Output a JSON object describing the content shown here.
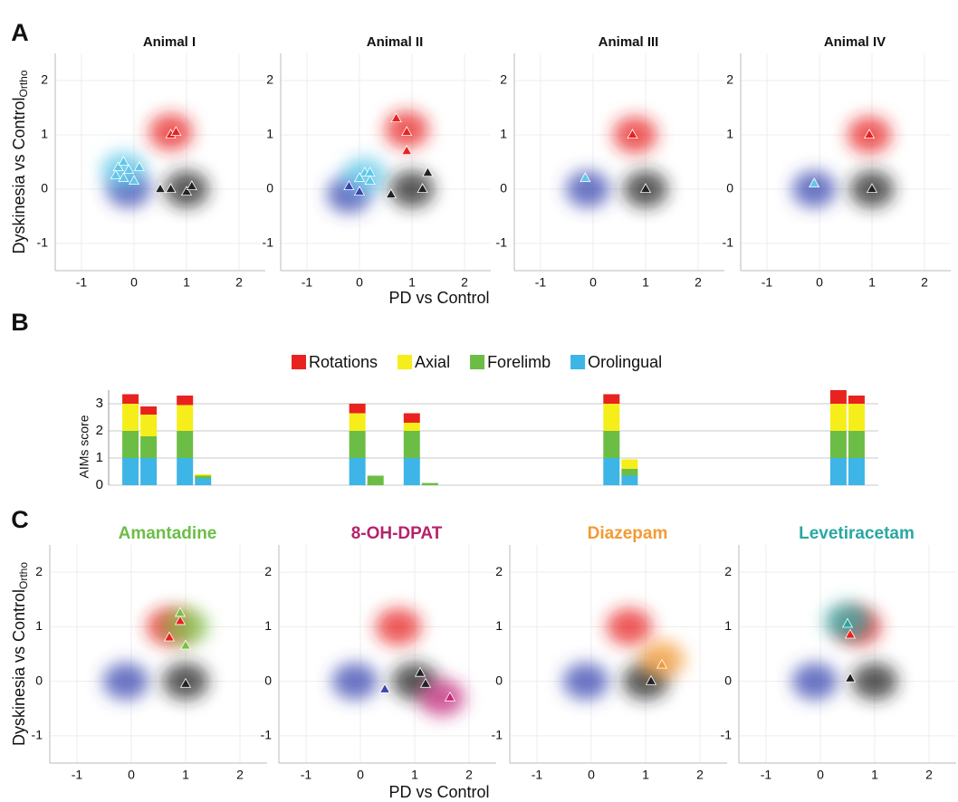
{
  "chart_data": [
    {
      "type": "scatter",
      "panel_label": "A",
      "title": "Animal I",
      "y_label": "Dyskinesia vs Control",
      "y_label_sub": "Ortho",
      "xlim": [
        -1.5,
        2.5
      ],
      "ylim": [
        -1.5,
        2.5
      ],
      "xticks": [
        -1,
        0,
        1,
        2
      ],
      "yticks": [
        -1,
        0,
        1,
        2
      ],
      "grid": true,
      "series": [
        {
          "marker": "cloud",
          "color": "#3a45b0",
          "x": [
            -0.1
          ],
          "values": [
            0.0
          ]
        },
        {
          "marker": "cloud",
          "color": "#5ec8e8",
          "x": [
            -0.2
          ],
          "values": [
            0.35
          ]
        },
        {
          "marker": "cloud",
          "color": "#e8231f",
          "x": [
            0.7
          ],
          "values": [
            1.05
          ]
        },
        {
          "marker": "cloud",
          "color": "#222222",
          "x": [
            1.0
          ],
          "values": [
            0.0
          ]
        },
        {
          "marker": "triangle",
          "color": "#5ec8e8",
          "x": [
            -0.3,
            -0.2,
            -0.1,
            0.1,
            -0.2,
            -0.35,
            0.0
          ],
          "values": [
            0.4,
            0.5,
            0.35,
            0.4,
            0.2,
            0.25,
            0.15
          ]
        },
        {
          "marker": "triangle",
          "color": "#e8231f",
          "x": [
            0.7,
            0.8
          ],
          "values": [
            1.0,
            1.05
          ]
        },
        {
          "marker": "triangle",
          "color": "#222222",
          "x": [
            0.5,
            0.7,
            1.0,
            1.1
          ],
          "values": [
            0.0,
            0.0,
            -0.05,
            0.05
          ]
        }
      ]
    },
    {
      "type": "scatter",
      "title": "Animal II",
      "x_label": "PD vs Control",
      "xlim": [
        -1.5,
        2.5
      ],
      "ylim": [
        -1.5,
        2.5
      ],
      "xticks": [
        -1,
        0,
        1,
        2
      ],
      "yticks": [
        -1,
        0,
        1,
        2
      ],
      "grid": true,
      "series": [
        {
          "marker": "cloud",
          "color": "#3a45b0",
          "x": [
            -0.2
          ],
          "values": [
            -0.1
          ]
        },
        {
          "marker": "cloud",
          "color": "#5ec8e8",
          "x": [
            0.1
          ],
          "values": [
            0.25
          ]
        },
        {
          "marker": "cloud",
          "color": "#e8231f",
          "x": [
            0.9
          ],
          "values": [
            1.1
          ]
        },
        {
          "marker": "cloud",
          "color": "#222222",
          "x": [
            1.0
          ],
          "values": [
            0.0
          ]
        },
        {
          "marker": "triangle",
          "color": "#5ec8e8",
          "x": [
            0.1,
            0.2,
            0.0,
            0.2
          ],
          "values": [
            0.3,
            0.3,
            0.2,
            0.15
          ]
        },
        {
          "marker": "triangle",
          "color": "#3a45b0",
          "x": [
            -0.2,
            0.0
          ],
          "values": [
            0.05,
            -0.05
          ]
        },
        {
          "marker": "triangle",
          "color": "#e8231f",
          "x": [
            0.7,
            0.9,
            0.9
          ],
          "values": [
            1.3,
            1.05,
            0.7
          ]
        },
        {
          "marker": "triangle",
          "color": "#222222",
          "x": [
            0.6,
            1.2,
            1.3
          ],
          "values": [
            -0.1,
            0.0,
            0.3
          ]
        }
      ]
    },
    {
      "type": "scatter",
      "title": "Animal III",
      "xlim": [
        -1.5,
        2.5
      ],
      "ylim": [
        -1.5,
        2.5
      ],
      "xticks": [
        -1,
        0,
        1,
        2
      ],
      "yticks": [
        -1,
        0,
        1,
        2
      ],
      "grid": true,
      "series": [
        {
          "marker": "cloud",
          "color": "#3a45b0",
          "x": [
            -0.1
          ],
          "values": [
            0.0
          ]
        },
        {
          "marker": "cloud",
          "color": "#e8231f",
          "x": [
            0.8
          ],
          "values": [
            1.0
          ]
        },
        {
          "marker": "cloud",
          "color": "#222222",
          "x": [
            1.0
          ],
          "values": [
            0.0
          ]
        },
        {
          "marker": "triangle",
          "color": "#5ec8e8",
          "x": [
            -0.15
          ],
          "values": [
            0.2
          ]
        },
        {
          "marker": "triangle",
          "color": "#e8231f",
          "x": [
            0.75
          ],
          "values": [
            1.0
          ]
        },
        {
          "marker": "triangle",
          "color": "#222222",
          "x": [
            1.0
          ],
          "values": [
            0.0
          ]
        }
      ]
    },
    {
      "type": "scatter",
      "title": "Animal IV",
      "xlim": [
        -1.5,
        2.5
      ],
      "ylim": [
        -1.5,
        2.5
      ],
      "xticks": [
        -1,
        0,
        1,
        2
      ],
      "yticks": [
        -1,
        0,
        1,
        2
      ],
      "grid": true,
      "series": [
        {
          "marker": "cloud",
          "color": "#3a45b0",
          "x": [
            -0.1
          ],
          "values": [
            0.0
          ]
        },
        {
          "marker": "cloud",
          "color": "#e8231f",
          "x": [
            0.95
          ],
          "values": [
            1.0
          ]
        },
        {
          "marker": "cloud",
          "color": "#222222",
          "x": [
            1.0
          ],
          "values": [
            0.0
          ]
        },
        {
          "marker": "triangle",
          "color": "#5ec8e8",
          "x": [
            -0.1
          ],
          "values": [
            0.1
          ]
        },
        {
          "marker": "triangle",
          "color": "#e8231f",
          "x": [
            0.95
          ],
          "values": [
            1.0
          ]
        },
        {
          "marker": "triangle",
          "color": "#222222",
          "x": [
            1.0
          ],
          "values": [
            0.0
          ]
        }
      ]
    },
    {
      "type": "stacked_bar",
      "panel_label": "B",
      "y_label": "AIMs score",
      "x": [
        0,
        1,
        3,
        4,
        12.5,
        13.5,
        15.5,
        16.5,
        26.5,
        27.5,
        39,
        40
      ],
      "xlim": [
        -1.2,
        41.2
      ],
      "ylim": [
        0,
        3.5
      ],
      "yticks": [
        0,
        1,
        2,
        3
      ],
      "grid": true,
      "series": [
        {
          "name": "Orolingual",
          "color": "#3db5e6",
          "values": [
            1,
            1,
            1,
            0.25,
            1,
            0,
            1,
            0,
            1,
            0.35,
            1,
            1
          ]
        },
        {
          "name": "Forelimb",
          "color": "#6cbd45",
          "values": [
            1,
            0.8,
            1,
            0.1,
            1,
            0.35,
            1,
            0.08,
            1,
            0.25,
            1,
            1
          ]
        },
        {
          "name": "Axial",
          "color": "#f5ee1b",
          "values": [
            1,
            0.8,
            0.95,
            0.05,
            0.65,
            0,
            0.3,
            0,
            1,
            0.35,
            1,
            1
          ]
        },
        {
          "name": "Rotations",
          "color": "#e8231f",
          "values": [
            0.35,
            0.3,
            0.35,
            0,
            0.35,
            0,
            0.35,
            0,
            0.35,
            0,
            0.5,
            0.3
          ]
        }
      ]
    },
    {
      "type": "scatter",
      "panel_label": "C",
      "title": "Amantadine",
      "title_color": "#6cbd45",
      "y_label": "Dyskinesia vs Control",
      "y_label_sub": "Ortho",
      "xlim": [
        -1.5,
        2.5
      ],
      "ylim": [
        -1.5,
        2.5
      ],
      "xticks": [
        -1,
        0,
        1,
        2
      ],
      "yticks": [
        -1,
        0,
        1,
        2
      ],
      "grid": true,
      "series": [
        {
          "marker": "cloud",
          "color": "#3a45b0",
          "x": [
            -0.1
          ],
          "values": [
            0.0
          ]
        },
        {
          "marker": "cloud",
          "color": "#e8231f",
          "x": [
            0.7
          ],
          "values": [
            1.0
          ]
        },
        {
          "marker": "cloud",
          "color": "#222222",
          "x": [
            1.0
          ],
          "values": [
            0.0
          ]
        },
        {
          "marker": "cloud",
          "color": "#7bc043",
          "x": [
            1.0
          ],
          "values": [
            1.0
          ]
        },
        {
          "marker": "triangle",
          "color": "#e8231f",
          "x": [
            0.9,
            0.7
          ],
          "values": [
            1.1,
            0.8
          ]
        },
        {
          "marker": "triangle",
          "color": "#7bc043",
          "x": [
            0.9,
            1.0
          ],
          "values": [
            1.25,
            0.65
          ]
        },
        {
          "marker": "triangle",
          "color": "#222222",
          "x": [
            1.0
          ],
          "values": [
            -0.05
          ]
        }
      ]
    },
    {
      "type": "scatter",
      "title": "8-OH-DPAT",
      "title_color": "#b5236b",
      "x_label": "PD vs Control",
      "xlim": [
        -1.5,
        2.5
      ],
      "ylim": [
        -1.5,
        2.5
      ],
      "xticks": [
        -1,
        0,
        1,
        2
      ],
      "yticks": [
        -1,
        0,
        1,
        2
      ],
      "grid": true,
      "series": [
        {
          "marker": "cloud",
          "color": "#3a45b0",
          "x": [
            -0.1
          ],
          "values": [
            0.0
          ]
        },
        {
          "marker": "cloud",
          "color": "#e8231f",
          "x": [
            0.7
          ],
          "values": [
            1.0
          ]
        },
        {
          "marker": "cloud",
          "color": "#222222",
          "x": [
            1.0
          ],
          "values": [
            0.0
          ]
        },
        {
          "marker": "cloud",
          "color": "#c2287a",
          "x": [
            1.5
          ],
          "values": [
            -0.3
          ]
        },
        {
          "marker": "triangle",
          "color": "#222222",
          "x": [
            1.1,
            1.2
          ],
          "values": [
            0.15,
            -0.05
          ]
        },
        {
          "marker": "triangle",
          "color": "#c2287a",
          "x": [
            1.65
          ],
          "values": [
            -0.3
          ]
        },
        {
          "marker": "triangle",
          "color": "#3a45b0",
          "x": [
            0.45
          ],
          "values": [
            -0.15
          ]
        }
      ]
    },
    {
      "type": "scatter",
      "title": "Diazepam",
      "title_color": "#f39a34",
      "xlim": [
        -1.5,
        2.5
      ],
      "ylim": [
        -1.5,
        2.5
      ],
      "xticks": [
        -1,
        0,
        1,
        2
      ],
      "yticks": [
        -1,
        0,
        1,
        2
      ],
      "grid": true,
      "series": [
        {
          "marker": "cloud",
          "color": "#3a45b0",
          "x": [
            -0.1
          ],
          "values": [
            0.0
          ]
        },
        {
          "marker": "cloud",
          "color": "#e8231f",
          "x": [
            0.7
          ],
          "values": [
            1.0
          ]
        },
        {
          "marker": "cloud",
          "color": "#222222",
          "x": [
            1.0
          ],
          "values": [
            0.0
          ]
        },
        {
          "marker": "cloud",
          "color": "#f39a34",
          "x": [
            1.3
          ],
          "values": [
            0.4
          ]
        },
        {
          "marker": "triangle",
          "color": "#f39a34",
          "x": [
            1.3
          ],
          "values": [
            0.3
          ]
        },
        {
          "marker": "triangle",
          "color": "#222222",
          "x": [
            1.1
          ],
          "values": [
            0.0
          ]
        }
      ]
    },
    {
      "type": "scatter",
      "title": "Levetiracetam",
      "title_color": "#2aa7a3",
      "xlim": [
        -1.5,
        2.5
      ],
      "ylim": [
        -1.5,
        2.5
      ],
      "xticks": [
        -1,
        0,
        1,
        2
      ],
      "yticks": [
        -1,
        0,
        1,
        2
      ],
      "grid": true,
      "series": [
        {
          "marker": "cloud",
          "color": "#3a45b0",
          "x": [
            -0.1
          ],
          "values": [
            0.0
          ]
        },
        {
          "marker": "cloud",
          "color": "#e8231f",
          "x": [
            0.7
          ],
          "values": [
            1.0
          ]
        },
        {
          "marker": "cloud",
          "color": "#222222",
          "x": [
            1.0
          ],
          "values": [
            0.0
          ]
        },
        {
          "marker": "cloud",
          "color": "#2aa7a3",
          "x": [
            0.5
          ],
          "values": [
            1.1
          ]
        },
        {
          "marker": "triangle",
          "color": "#2aa7a3",
          "x": [
            0.5
          ],
          "values": [
            1.05
          ]
        },
        {
          "marker": "triangle",
          "color": "#e8231f",
          "x": [
            0.55
          ],
          "values": [
            0.85
          ]
        },
        {
          "marker": "triangle",
          "color": "#222222",
          "x": [
            0.55
          ],
          "values": [
            0.05
          ]
        }
      ]
    }
  ]
}
